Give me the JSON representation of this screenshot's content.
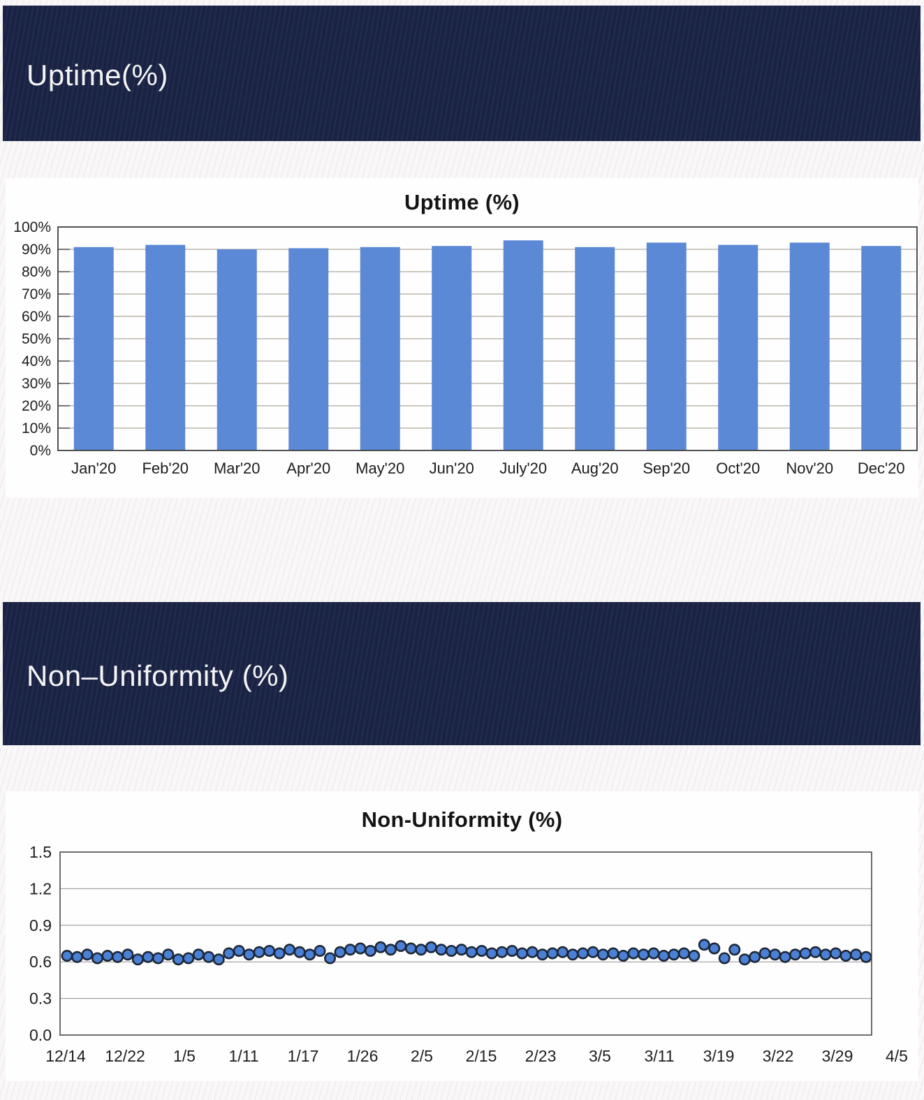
{
  "bands": [
    {
      "title": "Uptime(%)"
    },
    {
      "title": "Non–Uniformity (%)"
    }
  ],
  "colors": {
    "page_background": "#f9f7f8",
    "band_background": "#1b2547",
    "band_text": "#f4f4f6",
    "bar_fill": "#5b89d6",
    "point_fill": "#4b80d4",
    "point_outline": "#1c2737",
    "bar_gridline": "#98927f",
    "scatter_gridline": "#8f8f8f",
    "plot_border": "#3f3f3f"
  },
  "chart_data": [
    {
      "type": "bar",
      "title": "Uptime (%)",
      "categories": [
        "Jan'20",
        "Feb'20",
        "Mar'20",
        "Apr'20",
        "May'20",
        "Jun'20",
        "July'20",
        "Aug'20",
        "Sep'20",
        "Oct'20",
        "Nov'20",
        "Dec'20"
      ],
      "values": [
        91,
        92,
        90,
        90.5,
        91,
        91.5,
        94,
        91,
        93,
        92,
        93,
        91.5
      ],
      "xlabel": "",
      "ylabel": "",
      "ylim": [
        0,
        100
      ],
      "ytick_labels": [
        "0%",
        "10%",
        "20%",
        "30%",
        "40%",
        "50%",
        "60%",
        "70%",
        "80%",
        "90%",
        "100%"
      ],
      "grid": true,
      "legend": "none"
    },
    {
      "type": "scatter",
      "title": "Non-Uniformity (%)",
      "x_tick_labels": [
        "12/14",
        "12/22",
        "1/5",
        "1/11",
        "1/17",
        "1/26",
        "2/5",
        "2/15",
        "2/23",
        "3/5",
        "3/11",
        "3/19",
        "3/22",
        "3/29",
        "4/5"
      ],
      "values": [
        0.65,
        0.64,
        0.66,
        0.63,
        0.65,
        0.64,
        0.66,
        0.62,
        0.64,
        0.63,
        0.66,
        0.62,
        0.63,
        0.66,
        0.64,
        0.62,
        0.67,
        0.69,
        0.66,
        0.68,
        0.69,
        0.67,
        0.7,
        0.68,
        0.66,
        0.69,
        0.63,
        0.68,
        0.7,
        0.71,
        0.69,
        0.72,
        0.7,
        0.73,
        0.71,
        0.7,
        0.72,
        0.7,
        0.69,
        0.7,
        0.68,
        0.69,
        0.67,
        0.68,
        0.69,
        0.67,
        0.68,
        0.66,
        0.67,
        0.68,
        0.66,
        0.67,
        0.68,
        0.66,
        0.67,
        0.65,
        0.67,
        0.66,
        0.67,
        0.65,
        0.66,
        0.67,
        0.65,
        0.74,
        0.71,
        0.63,
        0.7,
        0.62,
        0.64,
        0.67,
        0.66,
        0.64,
        0.66,
        0.67,
        0.68,
        0.66,
        0.67,
        0.65,
        0.66,
        0.64
      ],
      "xlabel": "",
      "ylabel": "",
      "ylim": [
        0,
        1.5
      ],
      "ytick_labels": [
        "0.0",
        "0.3",
        "0.6",
        "0.9",
        "1.2",
        "1.5"
      ],
      "grid": true,
      "legend": "none"
    }
  ]
}
